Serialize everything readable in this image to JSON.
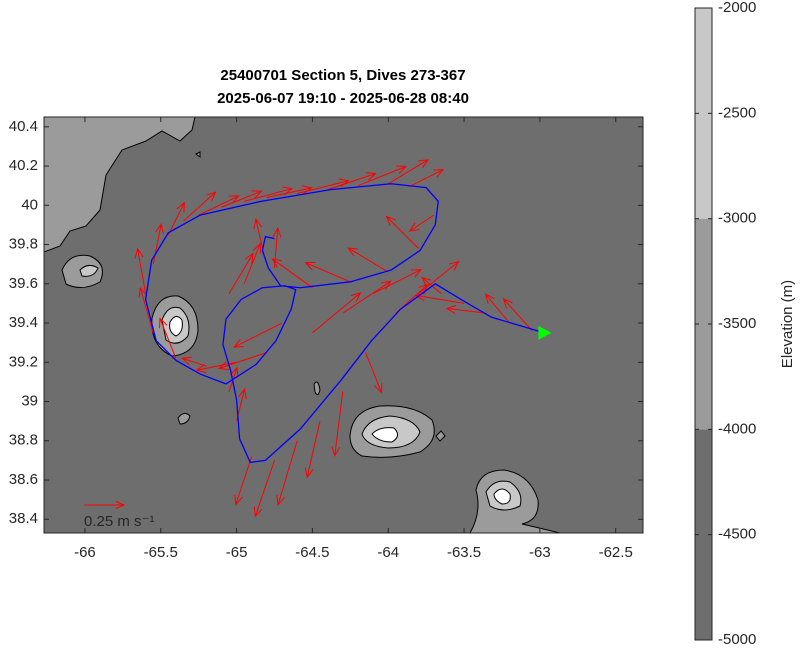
{
  "chart_data": {
    "type": "quiver",
    "title": "25400701 Section 5, Dives 273-367",
    "subtitle": "2025-06-07 19:10 - 2025-06-28 08:40",
    "xlim": [
      -66.27,
      -62.32
    ],
    "ylim": [
      38.33,
      40.45
    ],
    "xticks": [
      -66,
      -65.5,
      -65,
      -64.5,
      -64,
      -63.5,
      -63,
      -62.5
    ],
    "yticks": [
      38.4,
      38.6,
      38.8,
      39,
      39.2,
      39.4,
      39.6,
      39.8,
      40,
      40.2,
      40.4
    ],
    "background": "#6e6e6e",
    "track": {
      "color": "#0000ff",
      "end_color": "#00ff00",
      "lon": [
        -62.97,
        -63.32,
        -63.52,
        -63.69,
        -63.92,
        -64.11,
        -64.31,
        -64.58,
        -64.81,
        -64.91,
        -64.98,
        -65.0,
        -65.04,
        -65.09,
        -65.07,
        -64.97,
        -64.83,
        -64.68,
        -64.61,
        -64.64,
        -64.74,
        -64.87,
        -65.07,
        -65.24,
        -65.4,
        -65.53,
        -65.6,
        -65.56,
        -65.45,
        -65.24,
        -64.84,
        -64.38,
        -63.98,
        -63.75,
        -63.67,
        -63.69,
        -63.79,
        -63.98,
        -64.25,
        -64.58,
        -64.71,
        -64.79,
        -64.83,
        -64.81,
        -64.75
      ],
      "lat": [
        39.35,
        39.43,
        39.52,
        39.6,
        39.47,
        39.31,
        39.11,
        38.86,
        38.7,
        38.69,
        38.81,
        39.01,
        39.16,
        39.29,
        39.42,
        39.52,
        39.58,
        39.59,
        39.57,
        39.47,
        39.31,
        39.19,
        39.09,
        39.14,
        39.21,
        39.31,
        39.52,
        39.72,
        39.86,
        39.95,
        40.02,
        40.08,
        40.11,
        40.09,
        40.02,
        39.9,
        39.77,
        39.67,
        39.61,
        39.58,
        39.59,
        39.68,
        39.77,
        39.84,
        39.83
      ]
    },
    "arrows": {
      "color": "#ff0000",
      "lon": [
        -65.45,
        -65.35,
        -65.25,
        -65.1,
        -64.95,
        -64.8,
        -64.6,
        -64.4,
        -64.2,
        -64.0,
        -63.85,
        -63.7,
        -63.8,
        -64.0,
        -64.25,
        -64.5,
        -64.75,
        -64.82,
        -64.95,
        -65.05,
        -64.7,
        -64.8,
        -65.0,
        -65.2,
        -65.4,
        -65.55,
        -65.6,
        -65.55,
        -65.05,
        -65.0,
        -64.9,
        -64.75,
        -64.6,
        -64.45,
        -64.3,
        -64.15,
        -63.95,
        -63.8,
        -63.65,
        -63.5,
        -63.35,
        -63.2,
        -63.05,
        -64.5,
        -64.3,
        -64.1
      ],
      "lat": [
        39.85,
        39.92,
        39.95,
        39.99,
        40.02,
        40.04,
        40.06,
        40.08,
        40.1,
        40.11,
        40.1,
        39.95,
        39.78,
        39.66,
        39.61,
        39.58,
        39.68,
        39.75,
        39.6,
        39.55,
        39.4,
        39.25,
        39.2,
        39.18,
        39.22,
        39.35,
        39.55,
        39.7,
        39.05,
        38.9,
        38.72,
        38.7,
        38.8,
        38.9,
        39.05,
        39.25,
        39.45,
        39.55,
        39.55,
        39.5,
        39.45,
        39.4,
        39.36,
        39.35,
        39.45,
        39.55
      ],
      "u": [
        0.1,
        0.2,
        0.25,
        0.25,
        0.3,
        0.28,
        0.32,
        0.3,
        0.3,
        0.25,
        0.2,
        -0.15,
        -0.2,
        -0.25,
        -0.28,
        -0.25,
        0.02,
        -0.05,
        0.1,
        0.15,
        -0.3,
        -0.3,
        -0.25,
        -0.15,
        -0.1,
        -0.08,
        -0.05,
        0.05,
        0.05,
        0.05,
        -0.1,
        -0.12,
        -0.12,
        -0.08,
        -0.05,
        0.1,
        0.2,
        0.25,
        -0.12,
        -0.3,
        -0.25,
        -0.15,
        -0.18,
        0.3,
        0.3,
        0.3
      ],
      "v": [
        0.2,
        0.18,
        0.12,
        0.1,
        0.08,
        0.06,
        0.08,
        0.1,
        0.12,
        0.15,
        0.1,
        -0.1,
        0.2,
        0.15,
        0.12,
        0.18,
        0.25,
        0.22,
        0.25,
        0.25,
        -0.15,
        -0.1,
        -0.05,
        0.05,
        0.25,
        0.28,
        0.28,
        0.25,
        0.15,
        0.2,
        -0.3,
        -0.35,
        -0.4,
        -0.35,
        -0.4,
        -0.25,
        0.18,
        0.2,
        0.1,
        0.05,
        0.03,
        0.18,
        0.2,
        0.25,
        0.2,
        0.15
      ]
    },
    "scale": {
      "value": 0.25,
      "label": "0.25 m s⁻¹"
    },
    "colorbar": {
      "label": "Elevation (m)",
      "lim": [
        -5000,
        -2000
      ],
      "ticks": [
        -5000,
        -4500,
        -4000,
        -3500,
        -3000,
        -2500,
        -2000
      ],
      "band_edges": [
        -5000,
        -4000,
        -3000,
        -2000
      ],
      "band_colors": [
        "#6e6e6e",
        "#9b9b9b",
        "#c8c8c8"
      ]
    }
  }
}
